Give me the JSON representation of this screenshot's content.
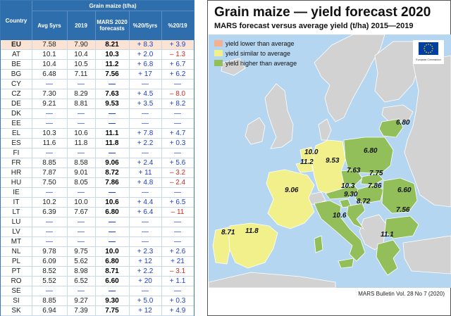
{
  "table": {
    "super_header": "Grain maize (t/ha)",
    "headers": [
      "Country",
      "Avg 5yrs",
      "2019",
      "MARS 2020 forecasts",
      "%20/5yrs",
      "%20/19"
    ],
    "rows": [
      [
        "EU",
        "7.58",
        "7.90",
        "8.21",
        "+ 8.3",
        "+ 3.9"
      ],
      [
        "AT",
        "10.1",
        "10.4",
        "10.3",
        "+ 2.0",
        "– 1.3"
      ],
      [
        "BE",
        "10.4",
        "10.5",
        "11.2",
        "+ 6.8",
        "+ 6.7"
      ],
      [
        "BG",
        "6.48",
        "7.11",
        "7.56",
        "+ 17",
        "+ 6.2"
      ],
      [
        "CY",
        "—",
        "—",
        "—",
        "—",
        "—"
      ],
      [
        "CZ",
        "7.30",
        "8.29",
        "7.63",
        "+ 4.5",
        "– 8.0"
      ],
      [
        "DE",
        "9.21",
        "8.81",
        "9.53",
        "+ 3.5",
        "+ 8.2"
      ],
      [
        "DK",
        "—",
        "—",
        "—",
        "—",
        "—"
      ],
      [
        "EE",
        "—",
        "—",
        "—",
        "—",
        "—"
      ],
      [
        "EL",
        "10.3",
        "10.6",
        "11.1",
        "+ 7.8",
        "+ 4.7"
      ],
      [
        "ES",
        "11.6",
        "11.8",
        "11.8",
        "+ 2.2",
        "+ 0.3"
      ],
      [
        "FI",
        "—",
        "—",
        "—",
        "—",
        "—"
      ],
      [
        "FR",
        "8.85",
        "8.58",
        "9.06",
        "+ 2.4",
        "+ 5.6"
      ],
      [
        "HR",
        "7.87",
        "9.01",
        "8.72",
        "+ 11",
        "– 3.2"
      ],
      [
        "HU",
        "7.50",
        "8.05",
        "7.86",
        "+ 4.8",
        "– 2.4"
      ],
      [
        "IE",
        "—",
        "—",
        "—",
        "—",
        "—"
      ],
      [
        "IT",
        "10.2",
        "10.0",
        "10.6",
        "+ 4.4",
        "+ 6.5"
      ],
      [
        "LT",
        "6.39",
        "7.67",
        "6.80",
        "+ 6.4",
        "– 11"
      ],
      [
        "LU",
        "—",
        "—",
        "—",
        "—",
        "—"
      ],
      [
        "LV",
        "—",
        "—",
        "—",
        "—",
        "—"
      ],
      [
        "MT",
        "—",
        "—",
        "—",
        "—",
        "—"
      ],
      [
        "NL",
        "9.78",
        "9.75",
        "10.0",
        "+ 2.3",
        "+ 2.6"
      ],
      [
        "PL",
        "6.09",
        "5.62",
        "6.80",
        "+ 12",
        "+ 21"
      ],
      [
        "PT",
        "8.52",
        "8.98",
        "8.71",
        "+ 2.2",
        "– 3.1"
      ],
      [
        "RO",
        "5.52",
        "6.52",
        "6.60",
        "+ 20",
        "+ 1.1"
      ],
      [
        "SE",
        "—",
        "—",
        "—",
        "—",
        "—"
      ],
      [
        "SI",
        "8.85",
        "9.27",
        "9.30",
        "+ 5.0",
        "+ 0.3"
      ],
      [
        "SK",
        "6.94",
        "7.39",
        "7.75",
        "+ 12",
        "+ 4.9"
      ]
    ]
  },
  "map": {
    "title": "Grain maize — yield forecast 2020",
    "subtitle": "MARS forecast versus average yield (t/ha) 2015—2019",
    "legend": [
      {
        "label": "yield lower than average",
        "color": "#f5b08f"
      },
      {
        "label": "yield similar to average",
        "color": "#f2f08a"
      },
      {
        "label": "yield higher than average",
        "color": "#92bf5a"
      }
    ],
    "colors": {
      "sea": "#b5d6f0",
      "land_other": "#d2d2d2",
      "similar": "#f2f08a",
      "higher": "#92bf5a",
      "border": "#ffffff",
      "eu_flag": "#003f9e",
      "eu_star": "#ffd400"
    },
    "eu_logo_text": "European Commission",
    "labels": [
      {
        "country": "LT",
        "value": "6.80"
      },
      {
        "country": "NL",
        "value": "10.0"
      },
      {
        "country": "BE",
        "value": "11.2"
      },
      {
        "country": "DE",
        "value": "9.53"
      },
      {
        "country": "PL",
        "value": "6.80"
      },
      {
        "country": "CZ",
        "value": "7.63"
      },
      {
        "country": "SK",
        "value": "7.75"
      },
      {
        "country": "FR",
        "value": "9.06"
      },
      {
        "country": "AT",
        "value": "10.3"
      },
      {
        "country": "HU",
        "value": "7.86"
      },
      {
        "country": "RO",
        "value": "6.60"
      },
      {
        "country": "SI",
        "value": "9.30"
      },
      {
        "country": "HR",
        "value": "8.72"
      },
      {
        "country": "BG",
        "value": "7.56"
      },
      {
        "country": "IT",
        "value": "10.6"
      },
      {
        "country": "PT",
        "value": "8.71"
      },
      {
        "country": "ES",
        "value": "11.8"
      },
      {
        "country": "EL",
        "value": "11.1"
      }
    ],
    "credit": "MARS Bulletin Vol. 28 No 7 (2020)"
  }
}
